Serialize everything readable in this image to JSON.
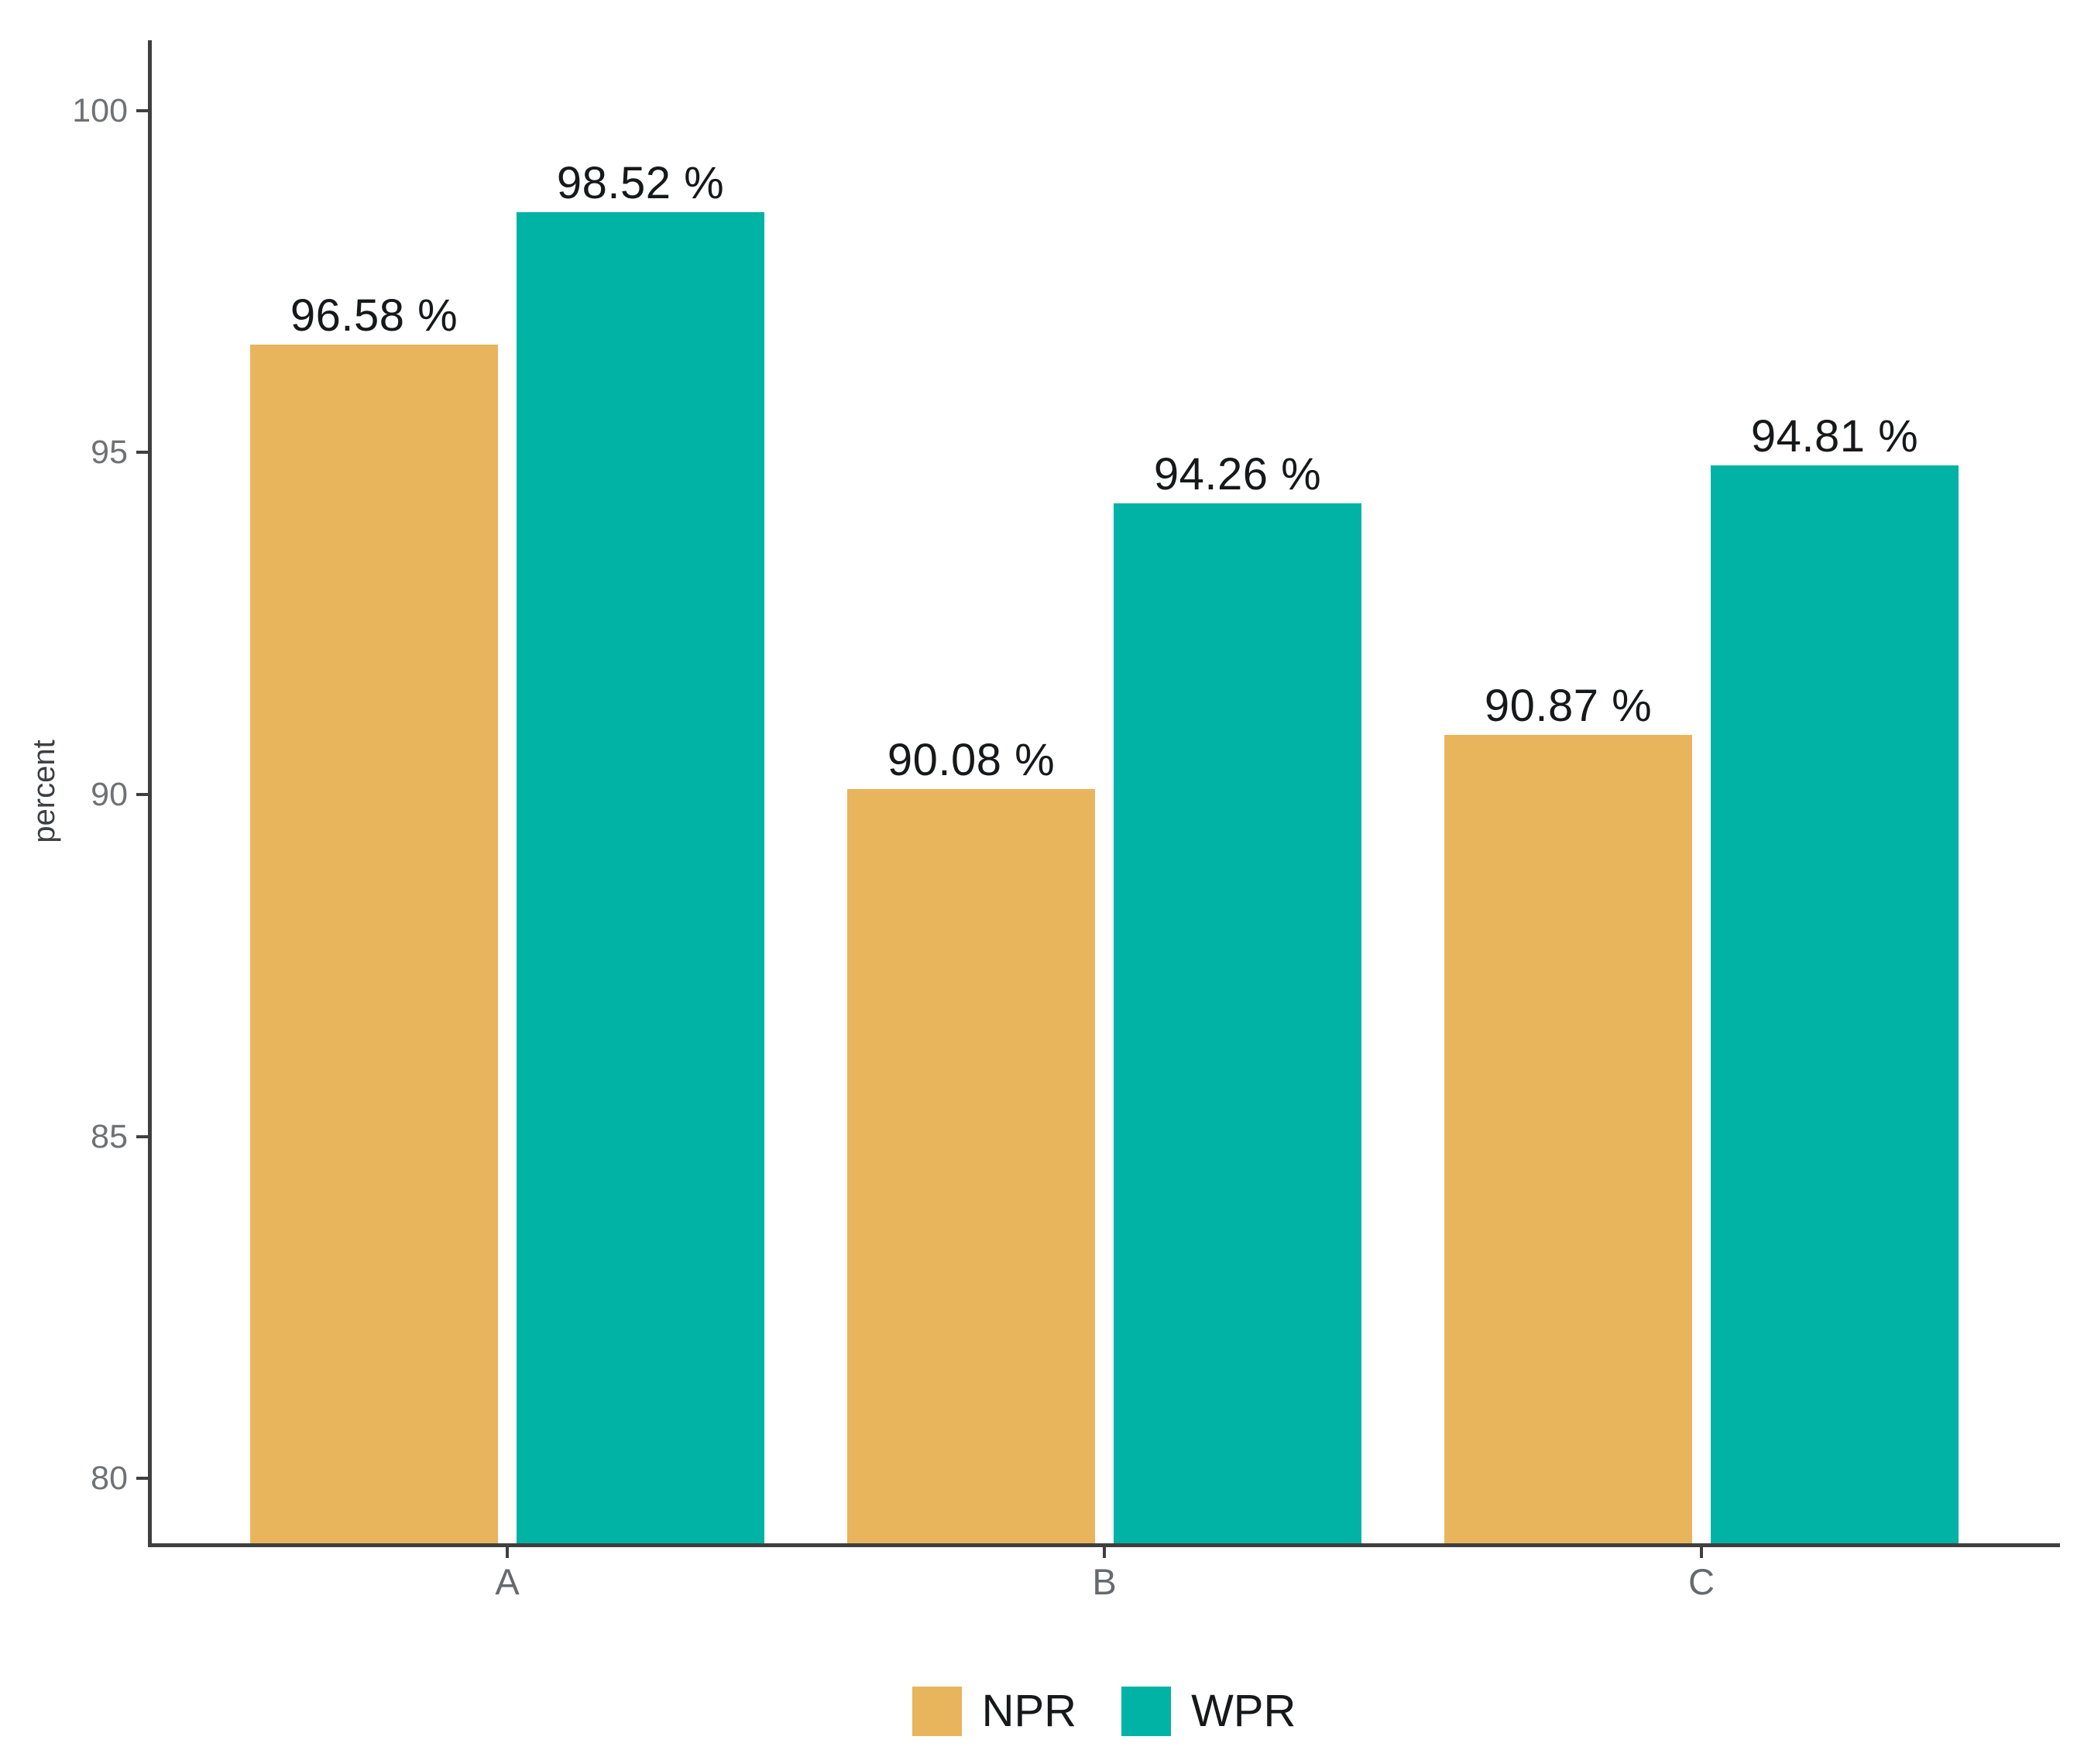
{
  "colors": {
    "npr": "#E8B45C",
    "wpr": "#00B3A5",
    "axis_line": "#3F3F3F",
    "tick_label": "#6E7275",
    "value_label": "#16181A"
  },
  "chart_data": {
    "type": "bar",
    "title": "",
    "xlabel": "",
    "ylabel": "percent",
    "categories": [
      "A",
      "B",
      "C"
    ],
    "series": [
      {
        "name": "NPR",
        "color": "#E8B45C",
        "values": [
          96.58,
          90.08,
          90.87
        ],
        "labels": [
          "96.58 %",
          "90.08 %",
          "90.87 %"
        ]
      },
      {
        "name": "WPR",
        "color": "#00B3A5",
        "values": [
          98.52,
          94.26,
          94.81
        ],
        "labels": [
          "98.52 %",
          "94.26 %",
          "94.81 %"
        ]
      }
    ],
    "yticks": [
      80,
      85,
      90,
      95,
      100
    ],
    "ylim": [
      79.05,
      101.03
    ],
    "grid": false,
    "legend_position": "bottom",
    "bar_value_suffix": " %"
  }
}
